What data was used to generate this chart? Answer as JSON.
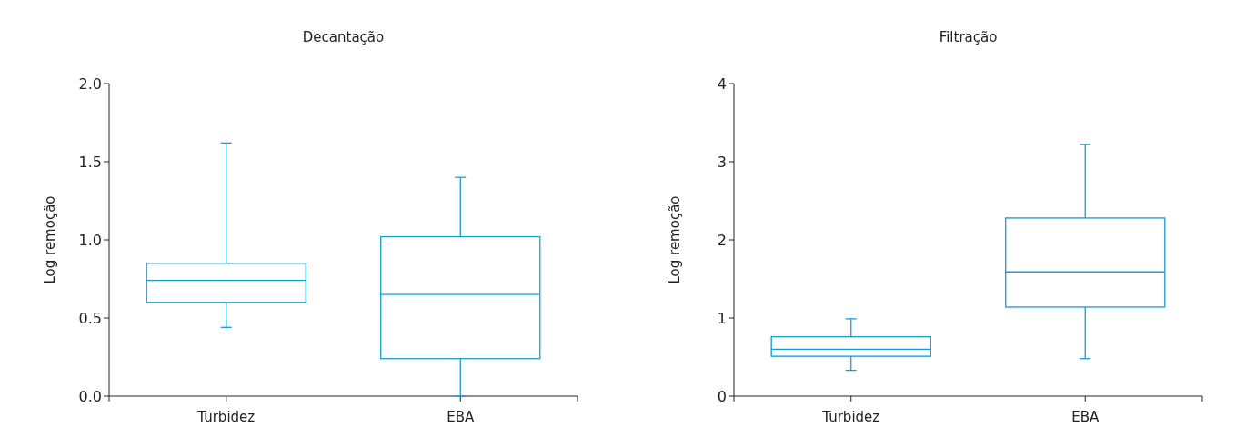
{
  "chart_data": [
    {
      "type": "box",
      "title": "Decantação",
      "ylabel": "Log remoção",
      "categories": [
        "Turbidez",
        "EBA"
      ],
      "color": "#1a9bd0",
      "ylim": [
        0,
        2
      ],
      "yticks": [
        {
          "value": 0,
          "label": "0.0"
        },
        {
          "value": 0.5,
          "label": "0.5"
        },
        {
          "value": 1,
          "label": "1.0"
        },
        {
          "value": 1.5,
          "label": "1.5"
        },
        {
          "value": 2,
          "label": "2.0"
        }
      ],
      "boxes": [
        {
          "low": 0.44,
          "q1": 0.6,
          "median": 0.74,
          "q3": 0.85,
          "high": 1.62
        },
        {
          "low": 0.0,
          "q1": 0.24,
          "median": 0.65,
          "q3": 1.02,
          "high": 1.4
        }
      ]
    },
    {
      "type": "box",
      "title": "Filtração",
      "ylabel": "Log remoção",
      "categories": [
        "Turbidez",
        "EBA"
      ],
      "color": "#1a9bd0",
      "ylim": [
        0,
        4
      ],
      "yticks": [
        0,
        1,
        2,
        3,
        4
      ],
      "boxes": [
        {
          "low": 0.33,
          "q1": 0.51,
          "median": 0.6,
          "q3": 0.76,
          "high": 0.99
        },
        {
          "low": 0.48,
          "q1": 1.14,
          "median": 1.59,
          "q3": 2.28,
          "high": 3.22
        }
      ]
    }
  ]
}
